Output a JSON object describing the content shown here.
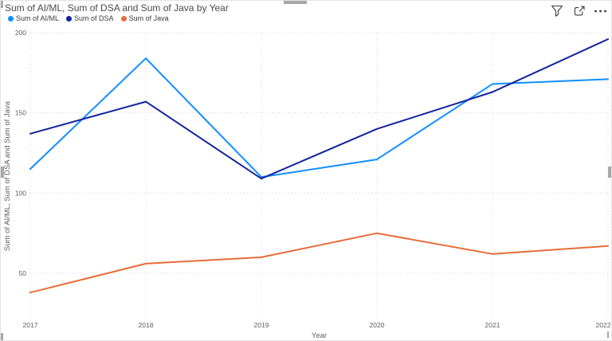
{
  "visual": {
    "header_icons": [
      {
        "name": "filter-icon"
      },
      {
        "name": "focus-mode-icon"
      },
      {
        "name": "more-options-icon"
      }
    ],
    "icon_color": "#3b3b3b"
  },
  "chart_data": {
    "type": "line",
    "title": "Sum of AI/ML, Sum of DSA and Sum of Java by Year",
    "xlabel": "Year",
    "ylabel": "Sum of AI/ML, Sum of DSA and Sum of Java",
    "categories": [
      "2017",
      "2018",
      "2019",
      "2020",
      "2021",
      "2022"
    ],
    "series": [
      {
        "name": "Sum of AI/ML",
        "color": "#118DFF",
        "values": [
          115,
          184,
          110,
          121,
          168,
          171
        ]
      },
      {
        "name": "Sum of DSA",
        "color": "#12239E",
        "values": [
          137,
          157,
          109,
          140,
          163,
          196
        ]
      },
      {
        "name": "Sum of Java",
        "color": "#E66C37",
        "values": [
          38,
          56,
          60,
          75,
          62,
          67
        ]
      }
    ],
    "y_ticks": [
      50,
      100,
      150,
      200
    ],
    "ylim": [
      20,
      200
    ],
    "grid": "dotted",
    "legend_position": "top-left"
  }
}
